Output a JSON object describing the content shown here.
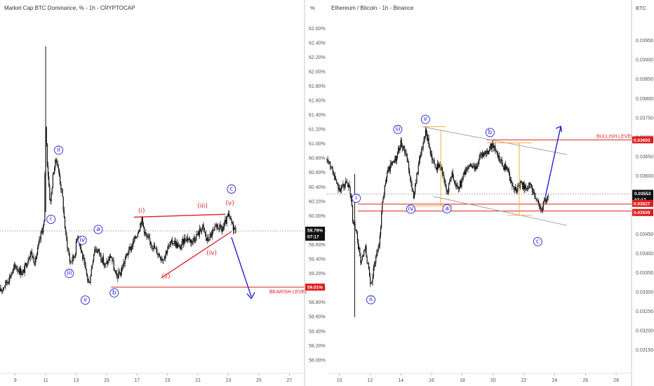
{
  "colors": {
    "wave": "#1f1fd0",
    "sub_wave": "#d62828",
    "level": "#e11d1d",
    "arrow": "#1f1fd0",
    "fib": "#f5a623",
    "candle": "#111111",
    "channel": "#9a9a9a"
  },
  "chart_data": [
    {
      "type": "candlestick",
      "title": "Market Cap BTC Dominance, % - 1h - CRYPTOCAP",
      "unit_label": "%",
      "x_ticks": [
        "9",
        "11",
        "13",
        "15",
        "17",
        "19",
        "21",
        "23",
        "25",
        "27"
      ],
      "y_ticks": [
        "62.60%",
        "62.40%",
        "62.20%",
        "62.00%",
        "61.80%",
        "61.60%",
        "61.40%",
        "61.20%",
        "61.00%",
        "60.80%",
        "60.60%",
        "60.40%",
        "60.20%",
        "60.00%",
        "59.80%",
        "59.60%",
        "59.40%",
        "59.20%",
        "59.00%",
        "58.80%",
        "58.60%",
        "58.40%",
        "58.20%",
        "58.00%"
      ],
      "ylim": [
        57.95,
        62.7
      ],
      "xlim": [
        8.0,
        28.0
      ],
      "price_path": [
        [
          8.0,
          58.95
        ],
        [
          8.5,
          59.1
        ],
        [
          9.0,
          59.3
        ],
        [
          9.5,
          59.2
        ],
        [
          10.0,
          59.5
        ],
        [
          10.3,
          59.35
        ],
        [
          10.7,
          59.75
        ],
        [
          10.9,
          59.9
        ],
        [
          11.0,
          61.25
        ],
        [
          11.1,
          60.75
        ],
        [
          11.3,
          60.15
        ],
        [
          11.5,
          60.6
        ],
        [
          11.7,
          60.8
        ],
        [
          11.9,
          60.55
        ],
        [
          12.1,
          60.25
        ],
        [
          12.3,
          59.75
        ],
        [
          12.6,
          59.35
        ],
        [
          12.9,
          59.45
        ],
        [
          13.1,
          59.75
        ],
        [
          13.3,
          59.55
        ],
        [
          13.6,
          59.25
        ],
        [
          13.85,
          59.05
        ],
        [
          14.2,
          59.55
        ],
        [
          14.5,
          59.5
        ],
        [
          14.9,
          59.3
        ],
        [
          15.3,
          59.45
        ],
        [
          15.6,
          59.15
        ],
        [
          15.9,
          59.2
        ],
        [
          16.3,
          59.45
        ],
        [
          16.7,
          59.6
        ],
        [
          17.0,
          59.75
        ],
        [
          17.3,
          59.95
        ],
        [
          17.6,
          59.7
        ],
        [
          18.0,
          59.6
        ],
        [
          18.3,
          59.5
        ],
        [
          18.7,
          59.4
        ],
        [
          19.0,
          59.55
        ],
        [
          19.4,
          59.65
        ],
        [
          19.8,
          59.55
        ],
        [
          20.2,
          59.7
        ],
        [
          20.6,
          59.65
        ],
        [
          21.0,
          59.75
        ],
        [
          21.3,
          59.85
        ],
        [
          21.6,
          59.65
        ],
        [
          21.9,
          59.75
        ],
        [
          22.3,
          59.85
        ],
        [
          22.6,
          59.8
        ],
        [
          23.0,
          60.0
        ],
        [
          23.3,
          59.85
        ],
        [
          23.5,
          59.79
        ]
      ],
      "spikes": [
        {
          "x": 11.0,
          "high": 62.35,
          "low": 60.05
        }
      ],
      "current_price": {
        "label": "59.79%",
        "countdown": "07:17",
        "value": 59.79
      },
      "level": {
        "label": "BEARISH LEVEL",
        "tag": "59.01%",
        "value": 59.01
      },
      "wave_labels": [
        {
          "text": "i",
          "x": 11.35,
          "y": 59.95,
          "style": "circle"
        },
        {
          "text": "ii",
          "x": 11.85,
          "y": 60.91,
          "style": "circle"
        },
        {
          "text": "iii",
          "x": 12.55,
          "y": 59.2,
          "style": "circle"
        },
        {
          "text": "iv",
          "x": 13.4,
          "y": 59.66,
          "style": "circle"
        },
        {
          "text": "v",
          "x": 13.6,
          "y": 58.83,
          "style": "circle"
        },
        {
          "text": "a",
          "x": 14.45,
          "y": 59.81,
          "style": "circle"
        },
        {
          "text": "b",
          "x": 15.5,
          "y": 58.93,
          "style": "circle"
        },
        {
          "text": "c",
          "x": 23.2,
          "y": 60.37,
          "style": "circle"
        },
        {
          "text": "(i)",
          "x": 17.3,
          "y": 60.06,
          "style": "plain"
        },
        {
          "text": "(ii)",
          "x": 18.9,
          "y": 59.15,
          "style": "plain"
        },
        {
          "text": "(iii)",
          "x": 21.3,
          "y": 60.13,
          "style": "plain"
        },
        {
          "text": "(iv)",
          "x": 21.9,
          "y": 59.48,
          "style": "plain"
        },
        {
          "text": "(v)",
          "x": 23.1,
          "y": 60.17,
          "style": "plain"
        }
      ],
      "trendlines": [
        {
          "kind": "upper",
          "x1": 16.8,
          "y1": 59.98,
          "x2": 22.8,
          "y2": 60.02
        },
        {
          "kind": "lower",
          "x1": 18.6,
          "y1": 59.14,
          "x2": 23.2,
          "y2": 59.78
        }
      ],
      "arrow": {
        "from": [
          23.2,
          59.7
        ],
        "to": [
          24.5,
          58.88
        ]
      }
    },
    {
      "type": "candlestick",
      "title": "Ethereum / Bitcoin - 1h - Binance",
      "unit_label": "BTC",
      "x_ticks": [
        "10",
        "12",
        "14",
        "16",
        "18",
        "20",
        "22",
        "24",
        "26",
        "28"
      ],
      "y_ticks": [
        "0.03950",
        "0.03900",
        "0.03850",
        "0.03800",
        "0.03750",
        "0.03700",
        "0.03650",
        "0.03600",
        "0.03550",
        "0.03500",
        "0.03450",
        "0.03400",
        "0.03350",
        "0.03300",
        "0.03250",
        "0.03200",
        "0.03150"
      ],
      "ylim": [
        0.03115,
        0.04
      ],
      "xlim": [
        9.2,
        29.0
      ],
      "price_path": [
        [
          9.2,
          0.03645
        ],
        [
          9.5,
          0.03625
        ],
        [
          9.8,
          0.03578
        ],
        [
          10.1,
          0.03566
        ],
        [
          10.4,
          0.0358
        ],
        [
          10.7,
          0.03565
        ],
        [
          10.9,
          0.03478
        ],
        [
          11.1,
          0.03455
        ],
        [
          11.4,
          0.03375
        ],
        [
          11.7,
          0.0341
        ],
        [
          11.9,
          0.03355
        ],
        [
          12.05,
          0.0331
        ],
        [
          12.3,
          0.0338
        ],
        [
          12.6,
          0.03425
        ],
        [
          12.8,
          0.03535
        ],
        [
          13.1,
          0.03605
        ],
        [
          13.4,
          0.03635
        ],
        [
          13.7,
          0.03645
        ],
        [
          14.0,
          0.03685
        ],
        [
          14.2,
          0.03675
        ],
        [
          14.5,
          0.03625
        ],
        [
          14.8,
          0.03545
        ],
        [
          15.0,
          0.03595
        ],
        [
          15.3,
          0.03655
        ],
        [
          15.6,
          0.03715
        ],
        [
          15.9,
          0.03665
        ],
        [
          16.2,
          0.03625
        ],
        [
          16.6,
          0.03625
        ],
        [
          17.0,
          0.03555
        ],
        [
          17.3,
          0.0361
        ],
        [
          17.6,
          0.0357
        ],
        [
          17.9,
          0.0358
        ],
        [
          18.2,
          0.03615
        ],
        [
          18.5,
          0.0363
        ],
        [
          18.8,
          0.03615
        ],
        [
          19.1,
          0.03645
        ],
        [
          19.4,
          0.03655
        ],
        [
          19.7,
          0.03665
        ],
        [
          20.0,
          0.03685
        ],
        [
          20.3,
          0.0365
        ],
        [
          20.6,
          0.03625
        ],
        [
          20.9,
          0.0362
        ],
        [
          21.2,
          0.0358
        ],
        [
          21.5,
          0.03565
        ],
        [
          21.8,
          0.0358
        ],
        [
          22.1,
          0.0357
        ],
        [
          22.4,
          0.03575
        ],
        [
          22.7,
          0.0355
        ],
        [
          23.0,
          0.0353
        ],
        [
          23.1,
          0.03505
        ],
        [
          23.3,
          0.0353
        ],
        [
          23.6,
          0.03553
        ]
      ],
      "spikes": [
        {
          "x": 11.0,
          "high": 0.03605,
          "low": 0.03235
        }
      ],
      "current_price": {
        "label": "0.03553",
        "countdown": "07:17",
        "value": 0.03553
      },
      "levels": [
        {
          "label": "BULLISH LEVEL",
          "tag": "0.03693",
          "value": 0.03693
        },
        {
          "label": "",
          "tag": "0.03527",
          "value": 0.03527
        },
        {
          "label": "",
          "tag": "0.03509",
          "value": 0.03509
        }
      ],
      "wave_labels": [
        {
          "text": "i",
          "x": 11.1,
          "y": 0.03542,
          "style": "circle"
        },
        {
          "text": "ii",
          "x": 12.05,
          "y": 0.0328,
          "style": "circle"
        },
        {
          "text": "iii",
          "x": 13.8,
          "y": 0.0372,
          "style": "circle"
        },
        {
          "text": "iv",
          "x": 14.65,
          "y": 0.03514,
          "style": "circle"
        },
        {
          "text": "v",
          "x": 15.6,
          "y": 0.03746,
          "style": "circle"
        },
        {
          "text": "a",
          "x": 17.0,
          "y": 0.03515,
          "style": "circle"
        },
        {
          "text": "b",
          "x": 19.8,
          "y": 0.03712,
          "style": "circle"
        },
        {
          "text": "c",
          "x": 22.9,
          "y": 0.0343,
          "style": "circle"
        }
      ],
      "channel": [
        {
          "x1": 15.4,
          "y1": 0.03727,
          "x2": 24.8,
          "y2": 0.03655
        },
        {
          "x1": 16.1,
          "y1": 0.03547,
          "x2": 24.8,
          "y2": 0.03472
        }
      ],
      "fib": {
        "top": 0.03727,
        "bottom": 0.03522,
        "bottom_right": 0.03498,
        "x_start": 15.4,
        "x_mid": 16.6,
        "x_right": 21.7,
        "x_end": 22.5,
        "x_mid_top": 0.03716,
        "x_right_top": 0.03685
      },
      "arrow": {
        "from": [
          23.4,
          0.03547
        ],
        "to": [
          24.4,
          0.03728
        ]
      }
    }
  ]
}
